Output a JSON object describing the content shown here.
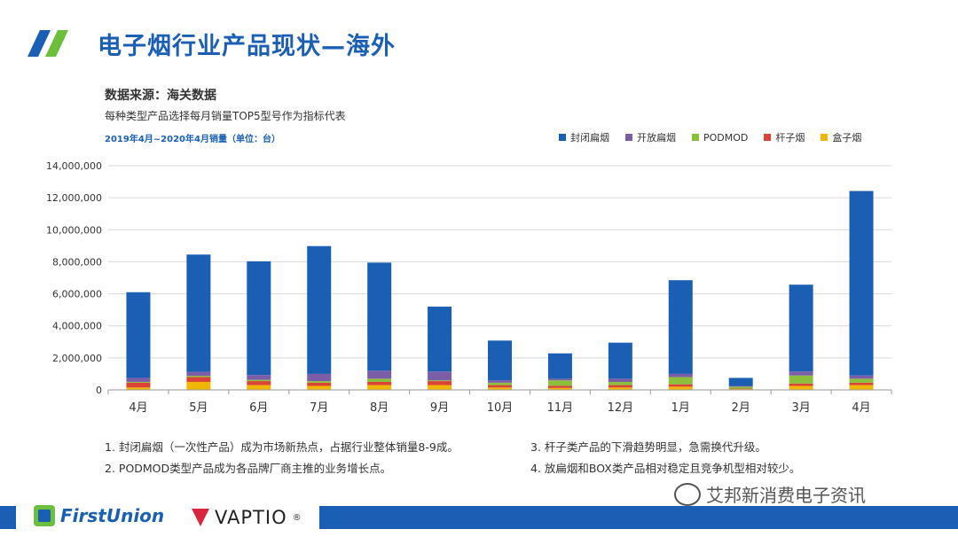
{
  "header": {
    "title": "电子烟行业产品现状—海外",
    "source": "数据来源：海关数据",
    "description": "每种类型产品选择每月销量TOP5型号作为指标代表",
    "period": "2019年4月~2020年4月销量（单位：台）"
  },
  "chart_data": {
    "type": "bar",
    "stacked": true,
    "categories": [
      "4月",
      "5月",
      "6月",
      "7月",
      "8月",
      "9月",
      "10月",
      "11月",
      "12月",
      "1月",
      "2月",
      "3月",
      "4月"
    ],
    "series": [
      {
        "name": "盒子烟",
        "color": "#f2b705",
        "values": [
          150000,
          500000,
          300000,
          250000,
          300000,
          300000,
          150000,
          120000,
          150000,
          200000,
          50000,
          250000,
          300000
        ]
      },
      {
        "name": "杆子烟",
        "color": "#d94436",
        "values": [
          300000,
          300000,
          250000,
          200000,
          200000,
          250000,
          150000,
          130000,
          150000,
          150000,
          30000,
          150000,
          150000
        ]
      },
      {
        "name": "PODMOD",
        "color": "#8bbf3c",
        "values": [
          50000,
          80000,
          80000,
          100000,
          200000,
          50000,
          150000,
          350000,
          200000,
          450000,
          120000,
          500000,
          250000
        ]
      },
      {
        "name": "开放扁烟",
        "color": "#7b5ea7",
        "values": [
          250000,
          250000,
          300000,
          450000,
          500000,
          550000,
          150000,
          100000,
          200000,
          200000,
          50000,
          250000,
          200000
        ]
      },
      {
        "name": "封闭扁烟",
        "color": "#1a5fb4",
        "values": [
          5350000,
          7320000,
          7100000,
          7980000,
          6750000,
          4050000,
          2480000,
          1580000,
          2250000,
          5850000,
          500000,
          5420000,
          11520000
        ]
      }
    ],
    "totals": [
      6100000,
      8450000,
      8030000,
      8980000,
      7950000,
      5200000,
      3080000,
      2280000,
      2950000,
      6850000,
      750000,
      6570000,
      12420000
    ],
    "ylim": [
      0,
      14000000
    ],
    "yticks": [
      0,
      2000000,
      4000000,
      6000000,
      8000000,
      10000000,
      12000000,
      14000000
    ],
    "ytick_labels": [
      "0",
      "2,000,000",
      "4,000,000",
      "6,000,000",
      "8,000,000",
      "10,000,000",
      "12,000,000",
      "14,000,000"
    ],
    "grid": true,
    "legend_position": "top-right"
  },
  "legend": [
    {
      "label": "封闭扁烟",
      "color": "#1a5fb4"
    },
    {
      "label": "开放扁烟",
      "color": "#7b5ea7"
    },
    {
      "label": "PODMOD",
      "color": "#8bbf3c"
    },
    {
      "label": "杆子烟",
      "color": "#d94436"
    },
    {
      "label": "盒子烟",
      "color": "#f2b705"
    }
  ],
  "notes": {
    "n1": "1.  封闭扁烟（一次性产品）成为市场新热点，占据行业整体销量8-9成。",
    "n2": "2.  PODMOD类型产品成为各品牌厂商主推的业务增长点。",
    "n3": "3.  杆子类产品的下滑趋势明显，急需换代升级。",
    "n4": "4.  放扁烟和BOX类产品相对稳定且竞争机型相对较少。"
  },
  "footer": {
    "brand1": "FirstUnion",
    "brand2": "VAPTIO",
    "brand2_mark": "®",
    "watermark": "艾邦新消费电子资讯"
  }
}
